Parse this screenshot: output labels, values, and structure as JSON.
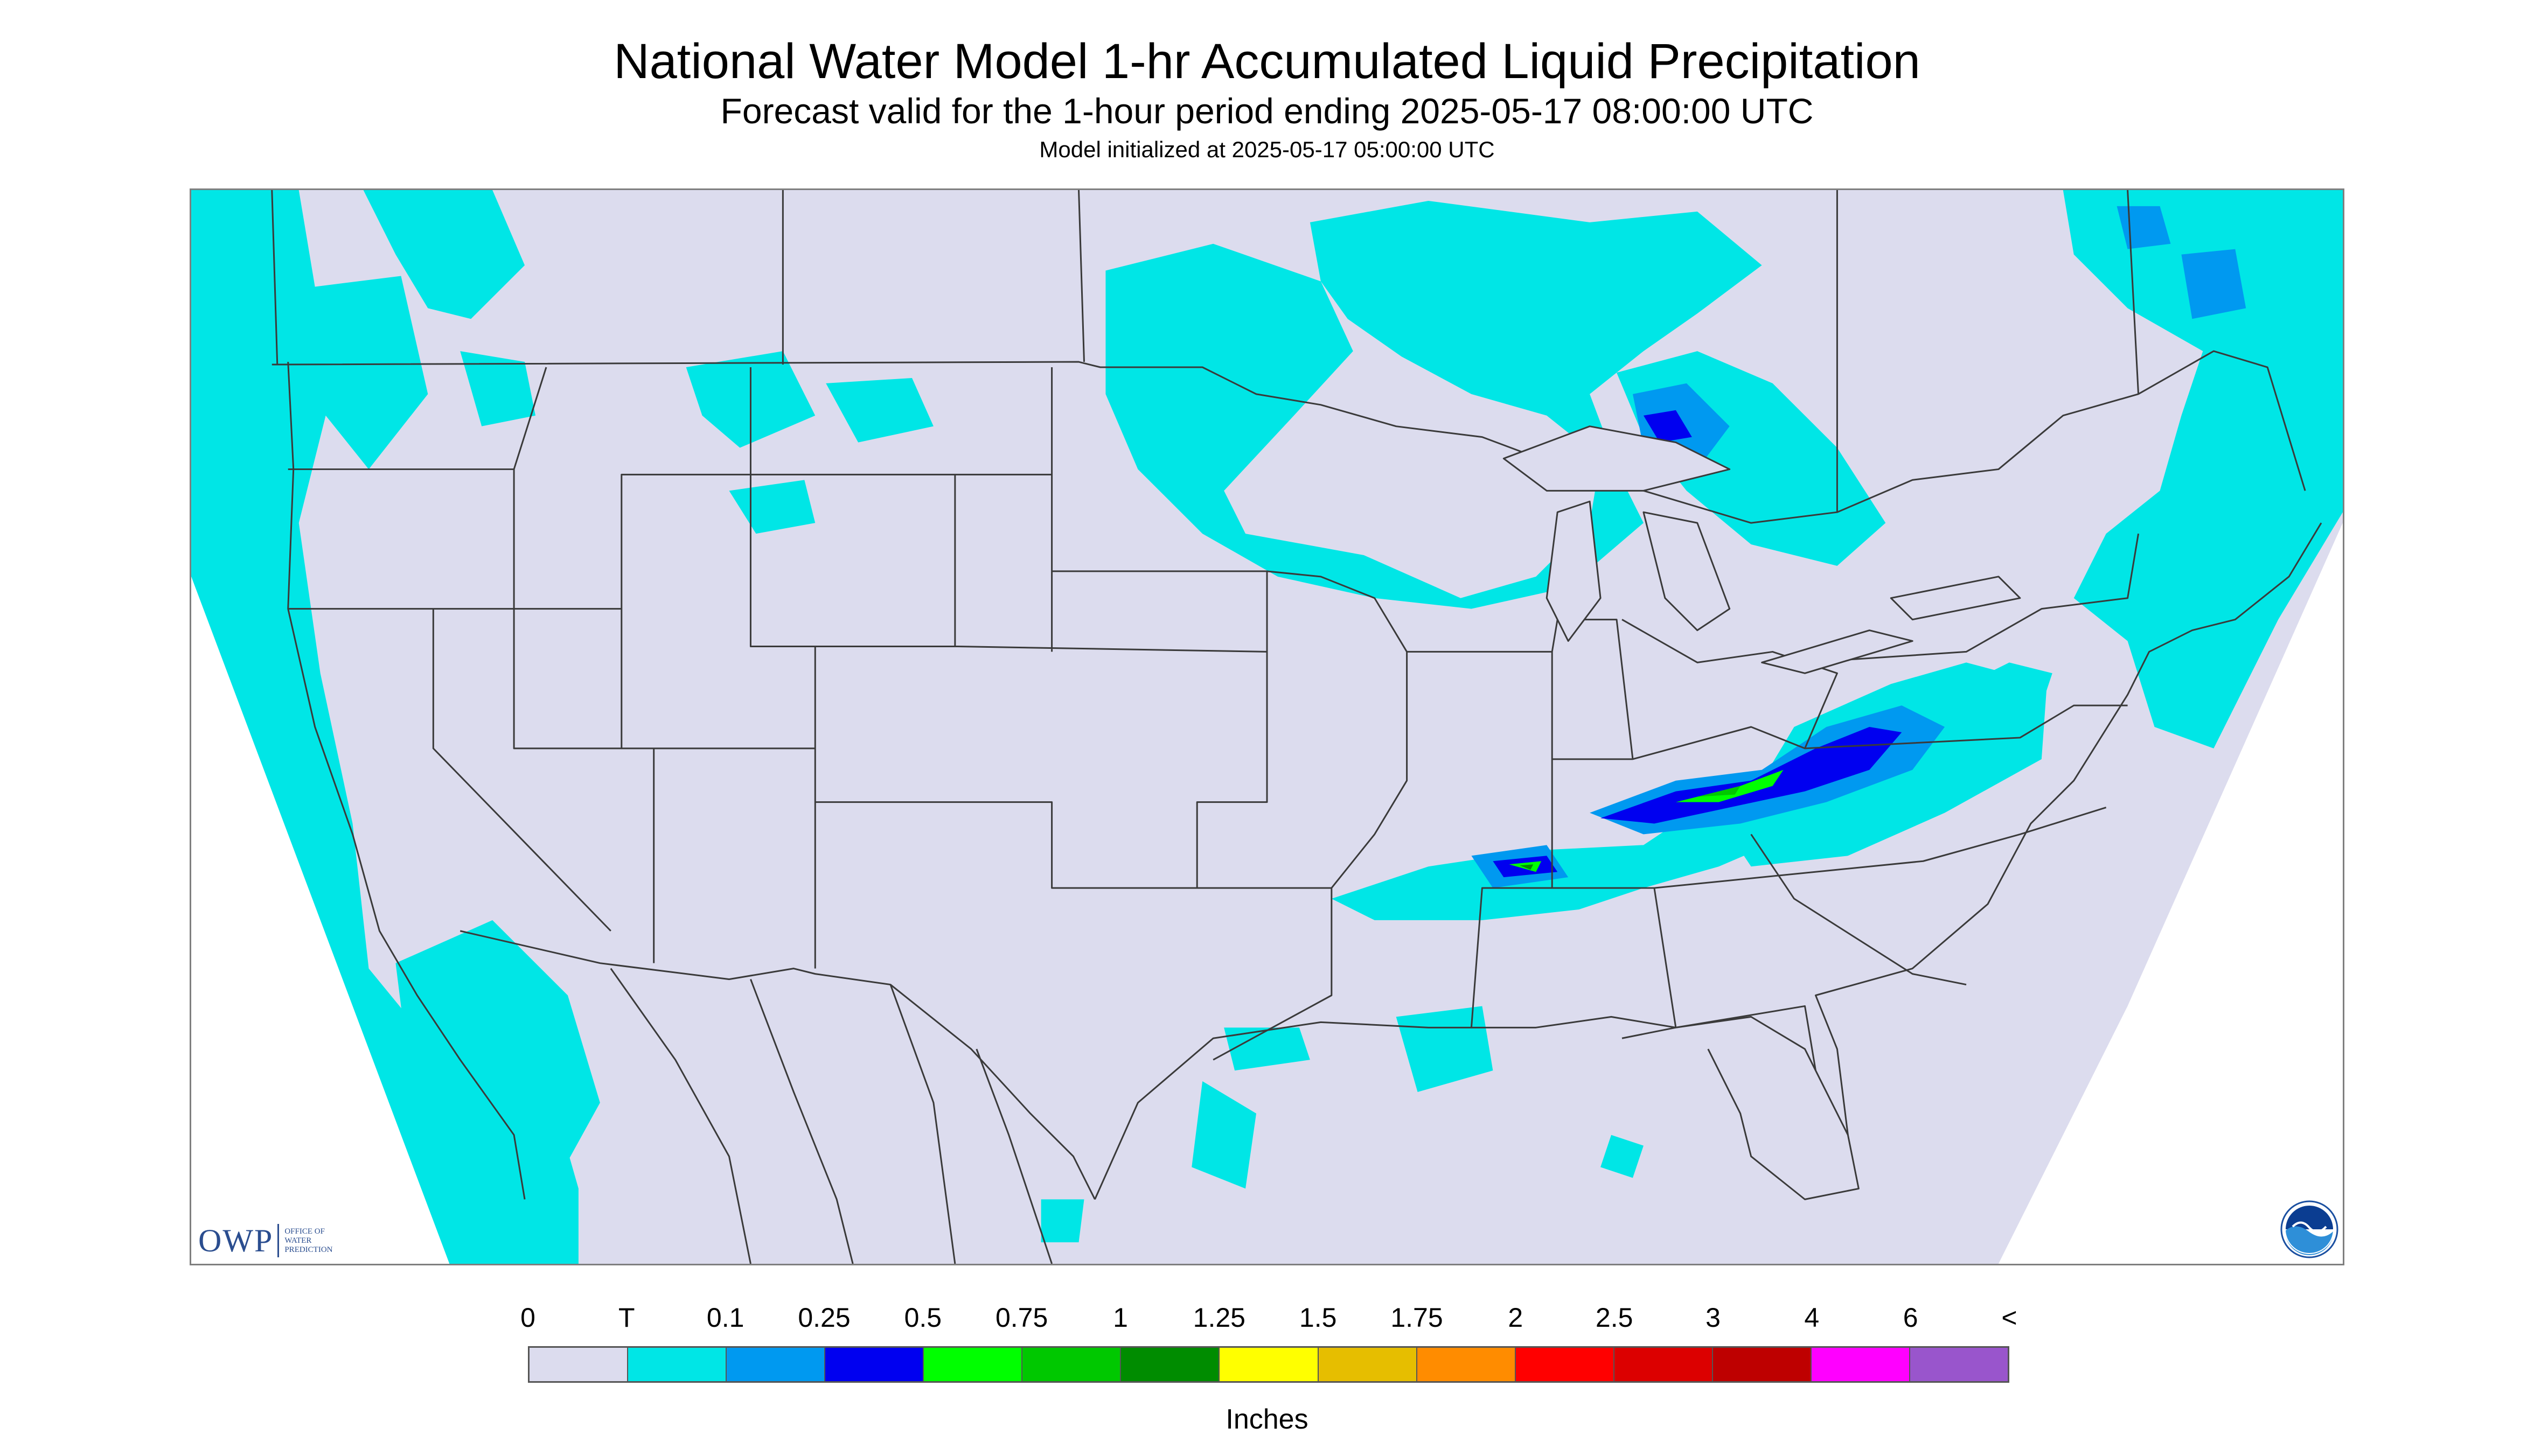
{
  "title": "National Water Model 1-hr Accumulated Liquid Precipitation",
  "subtitle": "Forecast valid for the 1-hour period ending 2025-05-17 08:00:00 UTC",
  "init_line": "Model initialized at 2025-05-17 05:00:00 UTC",
  "colors": {
    "map_background": "#dcdcee",
    "no_data": "#ffffff",
    "boundary": "#3a3a3a",
    "precip_trace": "#00e6e6",
    "precip_0_1": "#0099f0",
    "precip_0_25": "#0000f0",
    "precip_0_5": "#00ff00",
    "precip_0_75": "#00c800",
    "precip_1": "#008c00"
  },
  "logos": {
    "owp_text": "OWP",
    "owp_sub": [
      "OFFICE OF",
      "WATER",
      "PREDICTION"
    ],
    "noaa_icon": "noaa-logo-icon"
  },
  "legend": {
    "tick_labels": [
      "0",
      "T",
      "0.1",
      "0.25",
      "0.5",
      "0.75",
      "1",
      "1.25",
      "1.5",
      "1.75",
      "2",
      "2.5",
      "3",
      "4",
      "6",
      "<"
    ],
    "colors": [
      "#dcdcee",
      "#00e6e6",
      "#0099f0",
      "#0000f0",
      "#00ff00",
      "#00c800",
      "#008c00",
      "#ffff00",
      "#e6be00",
      "#ff8c00",
      "#ff0000",
      "#dc0000",
      "#be0000",
      "#ff00ff",
      "#9955cc"
    ],
    "units": "Inches"
  }
}
